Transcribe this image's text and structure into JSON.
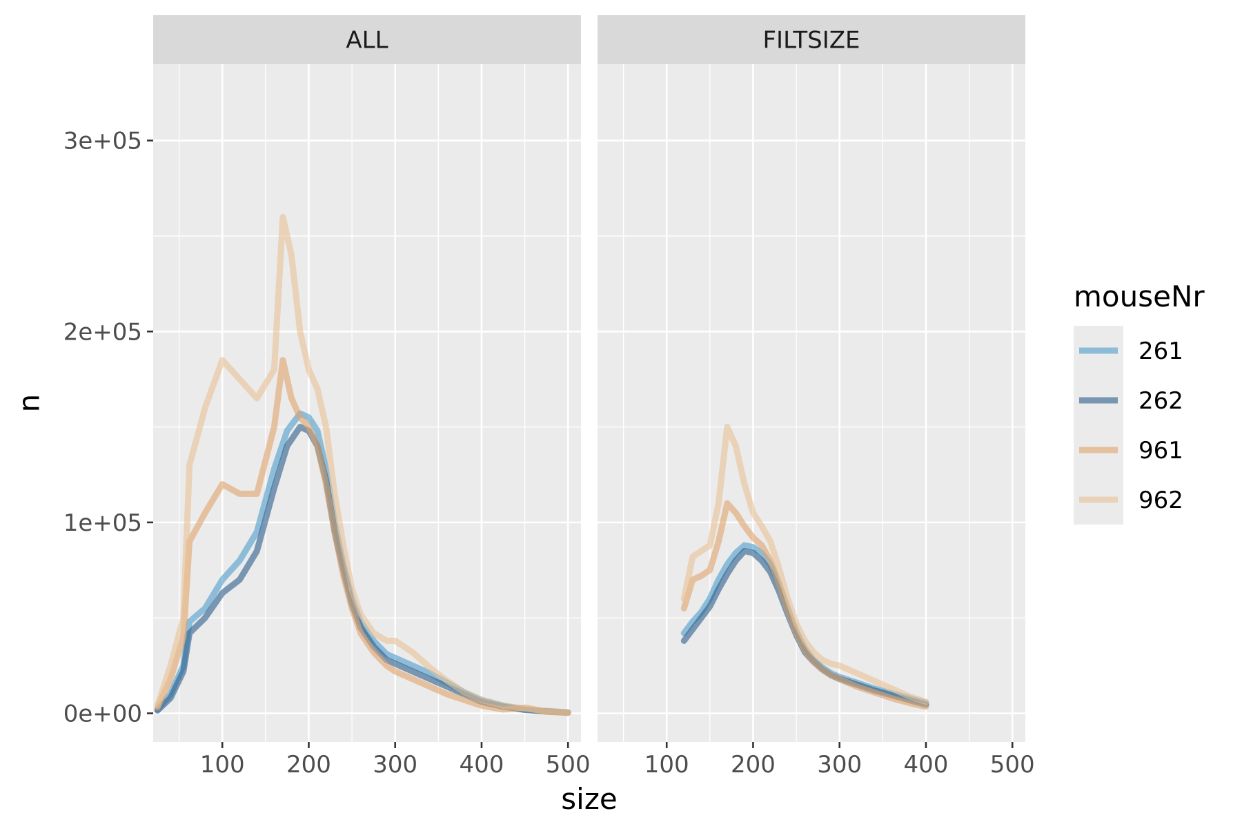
{
  "chart_data": {
    "type": "line",
    "xlabel": "size",
    "ylabel": "n",
    "xlim": [
      20,
      515
    ],
    "ylim": [
      -15000,
      340000
    ],
    "x_breaks": [
      100,
      200,
      300,
      400,
      500
    ],
    "x_tick_labels": [
      "100",
      "200",
      "300",
      "400",
      "500"
    ],
    "y_breaks": [
      0,
      100000,
      200000,
      300000
    ],
    "y_tick_labels": [
      "0e+00",
      "1e+05",
      "2e+05",
      "3e+05"
    ],
    "grid": true,
    "legend": {
      "title": "mouseNr",
      "placement": "right",
      "entries": [
        "261",
        "262",
        "961",
        "962"
      ]
    },
    "panels": [
      {
        "strip": "ALL",
        "series": [
          {
            "name": "261",
            "color": "#4D9CC9",
            "points": [
              [
                25,
                2000
              ],
              [
                40,
                10000
              ],
              [
                55,
                25000
              ],
              [
                62,
                48000
              ],
              [
                80,
                55000
              ],
              [
                100,
                70000
              ],
              [
                120,
                80000
              ],
              [
                140,
                95000
              ],
              [
                160,
                128000
              ],
              [
                175,
                148000
              ],
              [
                190,
                157000
              ],
              [
                200,
                155000
              ],
              [
                210,
                148000
              ],
              [
                220,
                128000
              ],
              [
                230,
                100000
              ],
              [
                240,
                78000
              ],
              [
                250,
                60000
              ],
              [
                260,
                48000
              ],
              [
                275,
                38000
              ],
              [
                290,
                31000
              ],
              [
                300,
                29000
              ],
              [
                320,
                25000
              ],
              [
                340,
                21000
              ],
              [
                360,
                16000
              ],
              [
                380,
                11000
              ],
              [
                400,
                7000
              ],
              [
                425,
                4000
              ],
              [
                450,
                2000
              ],
              [
                475,
                1200
              ],
              [
                500,
                500
              ]
            ]
          },
          {
            "name": "262",
            "color": "#2B5D8A",
            "points": [
              [
                25,
                1500
              ],
              [
                40,
                8000
              ],
              [
                55,
                22000
              ],
              [
                62,
                42000
              ],
              [
                80,
                50000
              ],
              [
                100,
                63000
              ],
              [
                120,
                70000
              ],
              [
                140,
                85000
              ],
              [
                160,
                118000
              ],
              [
                175,
                140000
              ],
              [
                190,
                150000
              ],
              [
                200,
                148000
              ],
              [
                210,
                140000
              ],
              [
                220,
                122000
              ],
              [
                230,
                95000
              ],
              [
                240,
                75000
              ],
              [
                250,
                57000
              ],
              [
                260,
                45000
              ],
              [
                275,
                35000
              ],
              [
                290,
                28000
              ],
              [
                300,
                26000
              ],
              [
                320,
                22000
              ],
              [
                340,
                18000
              ],
              [
                360,
                14000
              ],
              [
                380,
                10000
              ],
              [
                400,
                6000
              ],
              [
                425,
                3500
              ],
              [
                450,
                1800
              ],
              [
                475,
                1000
              ],
              [
                500,
                400
              ]
            ]
          },
          {
            "name": "961",
            "color": "#E0A36C",
            "points": [
              [
                25,
                3000
              ],
              [
                40,
                18000
              ],
              [
                55,
                40000
              ],
              [
                62,
                90000
              ],
              [
                80,
                105000
              ],
              [
                100,
                120000
              ],
              [
                120,
                115000
              ],
              [
                140,
                115000
              ],
              [
                160,
                150000
              ],
              [
                170,
                185000
              ],
              [
                180,
                165000
              ],
              [
                190,
                155000
              ],
              [
                200,
                150000
              ],
              [
                210,
                140000
              ],
              [
                220,
                120000
              ],
              [
                230,
                95000
              ],
              [
                240,
                72000
              ],
              [
                250,
                55000
              ],
              [
                260,
                42000
              ],
              [
                275,
                32000
              ],
              [
                290,
                25000
              ],
              [
                300,
                22000
              ],
              [
                320,
                18000
              ],
              [
                340,
                14000
              ],
              [
                360,
                10000
              ],
              [
                380,
                7000
              ],
              [
                400,
                4000
              ],
              [
                425,
                2000
              ],
              [
                450,
                3000
              ],
              [
                475,
                800
              ],
              [
                500,
                300
              ]
            ]
          },
          {
            "name": "962",
            "color": "#E8C196",
            "points": [
              [
                25,
                4000
              ],
              [
                40,
                25000
              ],
              [
                55,
                50000
              ],
              [
                62,
                130000
              ],
              [
                80,
                160000
              ],
              [
                100,
                185000
              ],
              [
                120,
                175000
              ],
              [
                140,
                165000
              ],
              [
                160,
                180000
              ],
              [
                170,
                260000
              ],
              [
                180,
                240000
              ],
              [
                190,
                200000
              ],
              [
                200,
                180000
              ],
              [
                210,
                170000
              ],
              [
                220,
                150000
              ],
              [
                230,
                115000
              ],
              [
                240,
                88000
              ],
              [
                250,
                65000
              ],
              [
                260,
                52000
              ],
              [
                275,
                42000
              ],
              [
                290,
                38000
              ],
              [
                300,
                38000
              ],
              [
                320,
                32000
              ],
              [
                340,
                24000
              ],
              [
                360,
                17000
              ],
              [
                380,
                11000
              ],
              [
                400,
                7000
              ],
              [
                425,
                4000
              ],
              [
                450,
                2500
              ],
              [
                475,
                1200
              ],
              [
                500,
                500
              ]
            ]
          }
        ]
      },
      {
        "strip": "FILTSIZE",
        "series": [
          {
            "name": "261",
            "color": "#4D9CC9",
            "points": [
              [
                120,
                42000
              ],
              [
                130,
                48000
              ],
              [
                140,
                53000
              ],
              [
                150,
                60000
              ],
              [
                160,
                70000
              ],
              [
                170,
                78000
              ],
              [
                180,
                84000
              ],
              [
                190,
                88000
              ],
              [
                200,
                87000
              ],
              [
                210,
                84000
              ],
              [
                220,
                78000
              ],
              [
                230,
                68000
              ],
              [
                240,
                55000
              ],
              [
                250,
                43000
              ],
              [
                260,
                34000
              ],
              [
                270,
                28000
              ],
              [
                280,
                24000
              ],
              [
                290,
                21000
              ],
              [
                300,
                19000
              ],
              [
                320,
                16000
              ],
              [
                340,
                13000
              ],
              [
                360,
                10500
              ],
              [
                380,
                8000
              ],
              [
                400,
                5500
              ]
            ]
          },
          {
            "name": "262",
            "color": "#2B5D8A",
            "points": [
              [
                120,
                38000
              ],
              [
                130,
                44000
              ],
              [
                140,
                50000
              ],
              [
                150,
                56000
              ],
              [
                160,
                65000
              ],
              [
                170,
                73000
              ],
              [
                180,
                80000
              ],
              [
                190,
                85000
              ],
              [
                200,
                84000
              ],
              [
                210,
                80000
              ],
              [
                220,
                74000
              ],
              [
                230,
                64000
              ],
              [
                240,
                52000
              ],
              [
                250,
                41000
              ],
              [
                260,
                32000
              ],
              [
                270,
                27000
              ],
              [
                280,
                23000
              ],
              [
                290,
                20000
              ],
              [
                300,
                18000
              ],
              [
                320,
                15000
              ],
              [
                340,
                12000
              ],
              [
                360,
                9500
              ],
              [
                380,
                7000
              ],
              [
                400,
                4500
              ]
            ]
          },
          {
            "name": "961",
            "color": "#E0A36C",
            "points": [
              [
                120,
                55000
              ],
              [
                130,
                70000
              ],
              [
                140,
                72000
              ],
              [
                150,
                75000
              ],
              [
                160,
                90000
              ],
              [
                170,
                110000
              ],
              [
                180,
                105000
              ],
              [
                190,
                98000
              ],
              [
                200,
                92000
              ],
              [
                210,
                88000
              ],
              [
                220,
                80000
              ],
              [
                230,
                68000
              ],
              [
                240,
                54000
              ],
              [
                250,
                42000
              ],
              [
                260,
                33000
              ],
              [
                270,
                27000
              ],
              [
                280,
                23000
              ],
              [
                290,
                20000
              ],
              [
                300,
                18000
              ],
              [
                320,
                14000
              ],
              [
                340,
                11000
              ],
              [
                360,
                8000
              ],
              [
                380,
                5500
              ],
              [
                400,
                3500
              ]
            ]
          },
          {
            "name": "962",
            "color": "#E8C196",
            "points": [
              [
                120,
                60000
              ],
              [
                130,
                82000
              ],
              [
                140,
                85000
              ],
              [
                150,
                88000
              ],
              [
                160,
                110000
              ],
              [
                170,
                150000
              ],
              [
                180,
                140000
              ],
              [
                190,
                120000
              ],
              [
                200,
                105000
              ],
              [
                210,
                98000
              ],
              [
                220,
                90000
              ],
              [
                230,
                76000
              ],
              [
                240,
                60000
              ],
              [
                250,
                47000
              ],
              [
                260,
                38000
              ],
              [
                270,
                32000
              ],
              [
                280,
                28000
              ],
              [
                290,
                26000
              ],
              [
                300,
                25000
              ],
              [
                320,
                21000
              ],
              [
                340,
                17000
              ],
              [
                360,
                13000
              ],
              [
                380,
                9000
              ],
              [
                400,
                6000
              ]
            ]
          }
        ]
      }
    ]
  }
}
